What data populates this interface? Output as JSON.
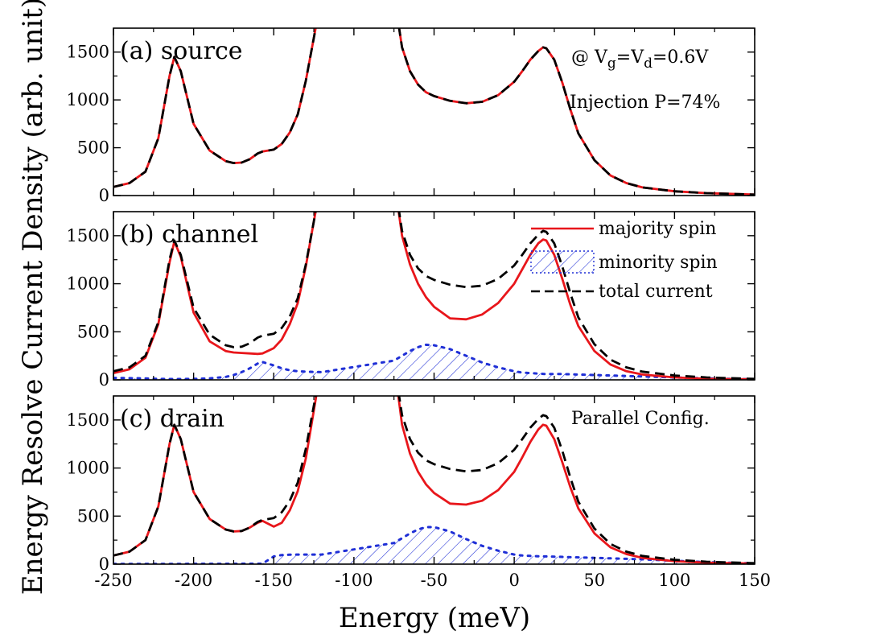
{
  "figure": {
    "xlabel": "Energy (meV)",
    "ylabel": "Energy Resolve Current Density (arb. unit)"
  },
  "legend": {
    "majority": "majority spin",
    "minority": "minority spin",
    "total": "total current",
    "placement": "top-right of panel (b)"
  },
  "colors": {
    "majority": "#e8161b",
    "minority": "#1f2fd6",
    "total": "#000000"
  },
  "chart_data": [
    {
      "type": "line",
      "panel": "(a) source",
      "annotations": [
        "@ V",
        "g",
        "=V",
        "d",
        "=0.6V",
        "Injection P=74%"
      ],
      "xlim": [
        -250,
        150
      ],
      "ylim": [
        0,
        1750
      ],
      "xticks": [
        -250,
        -200,
        -150,
        -100,
        -50,
        0,
        50,
        100,
        150
      ],
      "yticks": [
        0,
        500,
        1000,
        1500
      ],
      "x": [
        -250,
        -240,
        -230,
        -222,
        -215,
        -212,
        -208,
        -200,
        -190,
        -180,
        -175,
        -170,
        -165,
        -160,
        -157,
        -150,
        -145,
        -140,
        -135,
        -130,
        -125,
        -120,
        -75,
        -70,
        -65,
        -60,
        -55,
        -50,
        -40,
        -30,
        -20,
        -10,
        0,
        5,
        10,
        15,
        18,
        20,
        25,
        30,
        35,
        40,
        50,
        60,
        70,
        80,
        100,
        120,
        150
      ],
      "series": [
        {
          "name": "total current",
          "values": [
            90,
            130,
            250,
            600,
            1250,
            1450,
            1300,
            750,
            470,
            360,
            340,
            345,
            380,
            440,
            460,
            480,
            540,
            660,
            850,
            1200,
            1650,
            2100,
            2100,
            1550,
            1300,
            1160,
            1080,
            1040,
            990,
            965,
            980,
            1050,
            1190,
            1300,
            1420,
            1510,
            1550,
            1540,
            1420,
            1180,
            900,
            650,
            370,
            210,
            130,
            85,
            45,
            25,
            10
          ]
        },
        {
          "name": "majority spin",
          "values": [
            90,
            130,
            250,
            600,
            1250,
            1450,
            1300,
            750,
            470,
            360,
            340,
            345,
            380,
            440,
            460,
            480,
            540,
            660,
            850,
            1200,
            1650,
            2100,
            2100,
            1550,
            1300,
            1160,
            1080,
            1040,
            990,
            965,
            980,
            1050,
            1190,
            1300,
            1420,
            1510,
            1550,
            1540,
            1420,
            1180,
            900,
            650,
            370,
            210,
            130,
            85,
            45,
            25,
            10
          ]
        }
      ]
    },
    {
      "type": "line",
      "panel": "(b) channel",
      "xlim": [
        -250,
        150
      ],
      "ylim": [
        0,
        1750
      ],
      "xticks": [
        -250,
        -200,
        -150,
        -100,
        -50,
        0,
        50,
        100,
        150
      ],
      "yticks": [
        0,
        500,
        1000,
        1500
      ],
      "x": [
        -250,
        -240,
        -230,
        -222,
        -215,
        -212,
        -208,
        -200,
        -190,
        -180,
        -175,
        -170,
        -165,
        -160,
        -157,
        -150,
        -145,
        -140,
        -135,
        -130,
        -125,
        -120,
        -75,
        -70,
        -65,
        -60,
        -55,
        -50,
        -40,
        -30,
        -20,
        -10,
        0,
        5,
        10,
        15,
        18,
        20,
        25,
        30,
        35,
        40,
        50,
        60,
        70,
        80,
        100,
        120,
        150
      ],
      "series": [
        {
          "name": "total current",
          "values": [
            90,
            130,
            250,
            600,
            1250,
            1450,
            1300,
            750,
            470,
            360,
            340,
            345,
            380,
            440,
            460,
            480,
            540,
            660,
            850,
            1200,
            1650,
            2100,
            2100,
            1550,
            1300,
            1160,
            1080,
            1040,
            990,
            965,
            980,
            1050,
            1190,
            1300,
            1420,
            1510,
            1550,
            1540,
            1420,
            1180,
            900,
            650,
            370,
            210,
            130,
            85,
            45,
            25,
            10
          ]
        },
        {
          "name": "majority spin",
          "values": [
            70,
            110,
            230,
            580,
            1220,
            1440,
            1280,
            700,
            400,
            300,
            285,
            280,
            275,
            270,
            275,
            330,
            420,
            580,
            800,
            1180,
            1650,
            2100,
            2100,
            1500,
            1200,
            1000,
            860,
            760,
            640,
            630,
            680,
            800,
            1000,
            1150,
            1300,
            1420,
            1460,
            1450,
            1300,
            1050,
            780,
            560,
            300,
            160,
            90,
            55,
            25,
            12,
            5
          ]
        },
        {
          "name": "minority spin",
          "values": [
            20,
            18,
            15,
            10,
            8,
            8,
            8,
            10,
            15,
            30,
            50,
            80,
            120,
            170,
            185,
            150,
            120,
            100,
            90,
            85,
            82,
            80,
            200,
            250,
            300,
            340,
            365,
            360,
            320,
            250,
            180,
            130,
            90,
            75,
            70,
            65,
            62,
            60,
            60,
            60,
            58,
            55,
            50,
            45,
            40,
            35,
            25,
            15,
            5
          ]
        }
      ]
    },
    {
      "type": "line",
      "panel": "(c) drain",
      "annotations": [
        "Parallel Config."
      ],
      "xlim": [
        -250,
        150
      ],
      "ylim": [
        0,
        1750
      ],
      "xticks": [
        -250,
        -200,
        -150,
        -100,
        -50,
        0,
        50,
        100,
        150
      ],
      "yticks": [
        0,
        500,
        1000,
        1500
      ],
      "x": [
        -250,
        -240,
        -230,
        -222,
        -215,
        -212,
        -208,
        -200,
        -190,
        -180,
        -175,
        -170,
        -165,
        -160,
        -157,
        -150,
        -145,
        -140,
        -135,
        -130,
        -125,
        -120,
        -75,
        -70,
        -65,
        -60,
        -55,
        -50,
        -40,
        -30,
        -20,
        -10,
        0,
        5,
        10,
        15,
        18,
        20,
        25,
        30,
        35,
        40,
        50,
        60,
        70,
        80,
        100,
        120,
        150
      ],
      "series": [
        {
          "name": "total current",
          "values": [
            90,
            130,
            250,
            600,
            1250,
            1450,
            1300,
            750,
            470,
            360,
            340,
            345,
            380,
            440,
            460,
            480,
            540,
            660,
            850,
            1200,
            1650,
            2100,
            2100,
            1550,
            1300,
            1160,
            1080,
            1040,
            990,
            965,
            980,
            1050,
            1190,
            1300,
            1420,
            1510,
            1550,
            1540,
            1420,
            1180,
            900,
            650,
            370,
            210,
            130,
            85,
            45,
            25,
            10
          ]
        },
        {
          "name": "majority spin",
          "values": [
            90,
            130,
            250,
            600,
            1250,
            1450,
            1300,
            750,
            470,
            360,
            340,
            345,
            380,
            430,
            450,
            390,
            430,
            560,
            760,
            1100,
            1600,
            2100,
            2100,
            1450,
            1150,
            960,
            830,
            740,
            630,
            620,
            660,
            770,
            960,
            1110,
            1270,
            1400,
            1450,
            1440,
            1300,
            1060,
            800,
            580,
            320,
            175,
            105,
            65,
            30,
            15,
            6
          ]
        },
        {
          "name": "minority spin",
          "values": [
            2,
            2,
            2,
            2,
            2,
            2,
            2,
            3,
            3,
            3,
            3,
            4,
            4,
            4,
            5,
            80,
            95,
            98,
            100,
            100,
            100,
            100,
            220,
            270,
            320,
            360,
            385,
            385,
            340,
            260,
            190,
            140,
            100,
            90,
            85,
            82,
            80,
            80,
            78,
            75,
            72,
            70,
            65,
            60,
            55,
            50,
            35,
            20,
            8
          ]
        }
      ]
    }
  ]
}
